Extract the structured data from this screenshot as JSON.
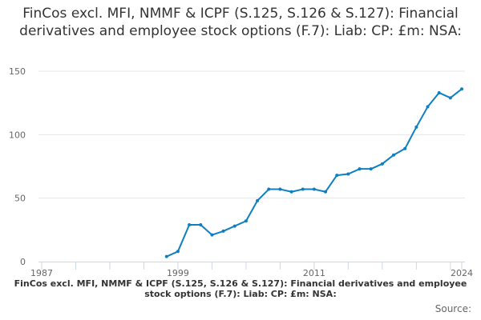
{
  "chart_data": {
    "type": "line",
    "title": "FinCos excl. MFI, NMMF & ICPF (S.125, S.126 & S.127): Financial derivatives and employee stock options (F.7): Liab: CP: £m: NSA:",
    "series_title": "FinCos excl. MFI, NMMF & ICPF (S.125, S.126 & S.127): Financial derivatives and employee stock options (F.7): Liab: CP: £m: NSA:",
    "source_label": "Source:",
    "xlim": [
      1987,
      2024
    ],
    "ylim": [
      0,
      150
    ],
    "x_ticks": [
      1987,
      1999,
      2011,
      2024
    ],
    "y_ticks": [
      0,
      50,
      100,
      150
    ],
    "color": "#0e7fc2",
    "x": [
      1998,
      1999,
      2000,
      2001,
      2002,
      2003,
      2004,
      2005,
      2006,
      2007,
      2008,
      2009,
      2010,
      2011,
      2012,
      2013,
      2014,
      2015,
      2016,
      2017,
      2018,
      2019,
      2020,
      2021,
      2022,
      2023,
      2024
    ],
    "values": [
      4,
      8,
      29,
      29,
      21,
      24,
      28,
      32,
      48,
      57,
      57,
      55,
      57,
      57,
      55,
      68,
      69,
      73,
      73,
      77,
      84,
      89,
      106,
      122,
      133,
      129,
      136
    ]
  }
}
